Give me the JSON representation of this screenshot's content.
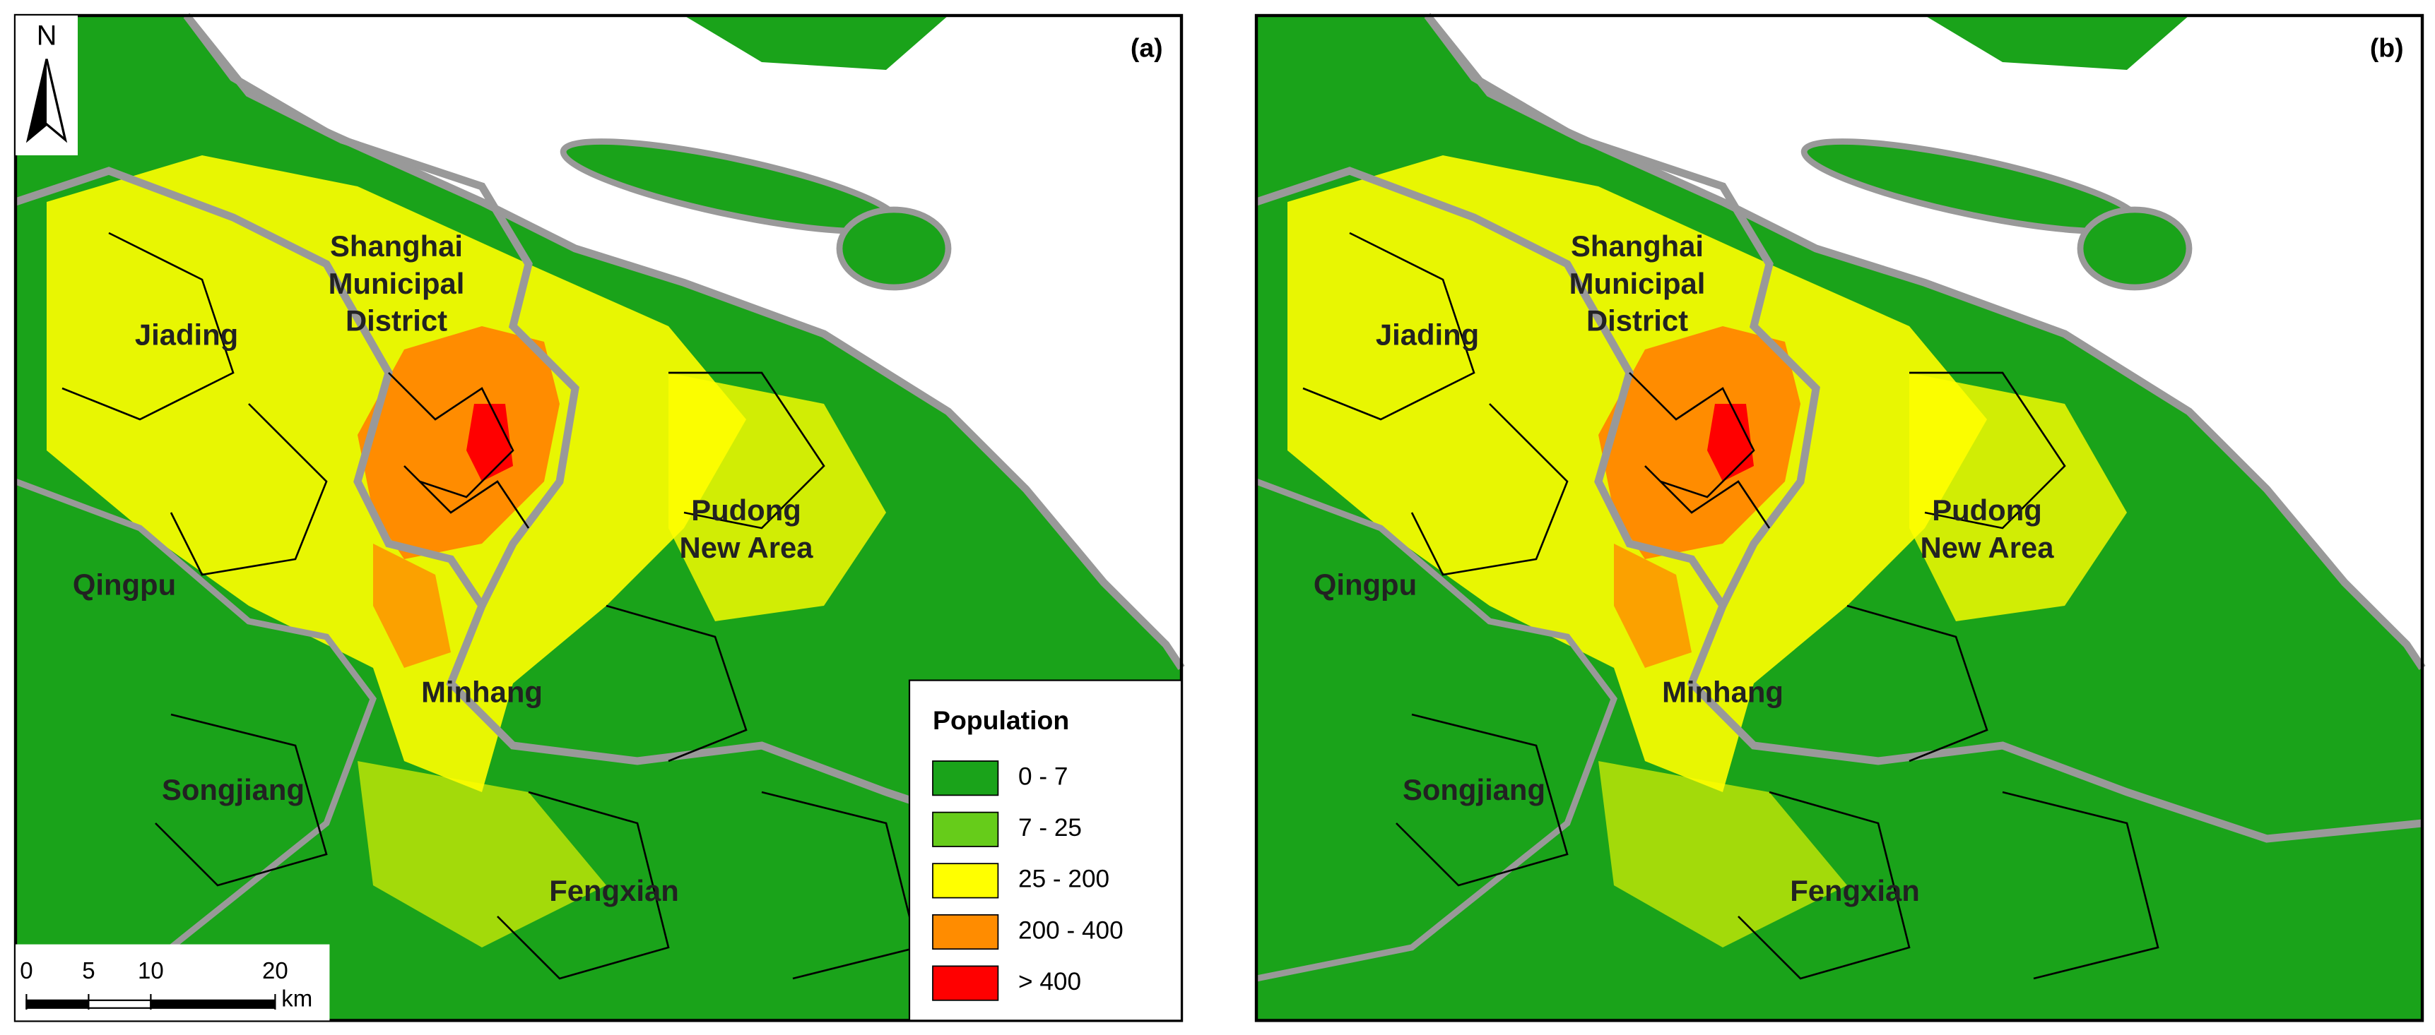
{
  "panels": [
    {
      "label": "(a)",
      "districts": [
        {
          "lines": [
            "Shanghai",
            "Municipal",
            "District"
          ]
        },
        {
          "lines": [
            "Jiading"
          ]
        },
        {
          "lines": [
            "Pudong",
            "New Area"
          ]
        },
        {
          "lines": [
            "Qingpu"
          ]
        },
        {
          "lines": [
            "Minhang"
          ]
        },
        {
          "lines": [
            "Songjiang"
          ]
        },
        {
          "lines": [
            "Fengxian"
          ]
        }
      ]
    },
    {
      "label": "(b)",
      "districts": [
        {
          "lines": [
            "Shanghai",
            "Municipal",
            "District"
          ]
        },
        {
          "lines": [
            "Jiading"
          ]
        },
        {
          "lines": [
            "Pudong",
            "New Area"
          ]
        },
        {
          "lines": [
            "Qingpu"
          ]
        },
        {
          "lines": [
            "Minhang"
          ]
        },
        {
          "lines": [
            "Songjiang"
          ]
        },
        {
          "lines": [
            "Fengxian"
          ]
        }
      ]
    }
  ],
  "north": "N",
  "legend": {
    "title": "Population",
    "items": [
      {
        "label": "0 - 7",
        "color": "#1aa31a"
      },
      {
        "label": "7 - 25",
        "color": "#66cc1a"
      },
      {
        "label": "25 - 200",
        "color": "#ffff00"
      },
      {
        "label": "200 - 400",
        "color": "#ff8c00"
      },
      {
        "label": "> 400",
        "color": "#ff0000"
      }
    ]
  },
  "scale_bar": {
    "ticks": [
      0,
      5,
      10,
      20
    ],
    "unit": "km"
  }
}
